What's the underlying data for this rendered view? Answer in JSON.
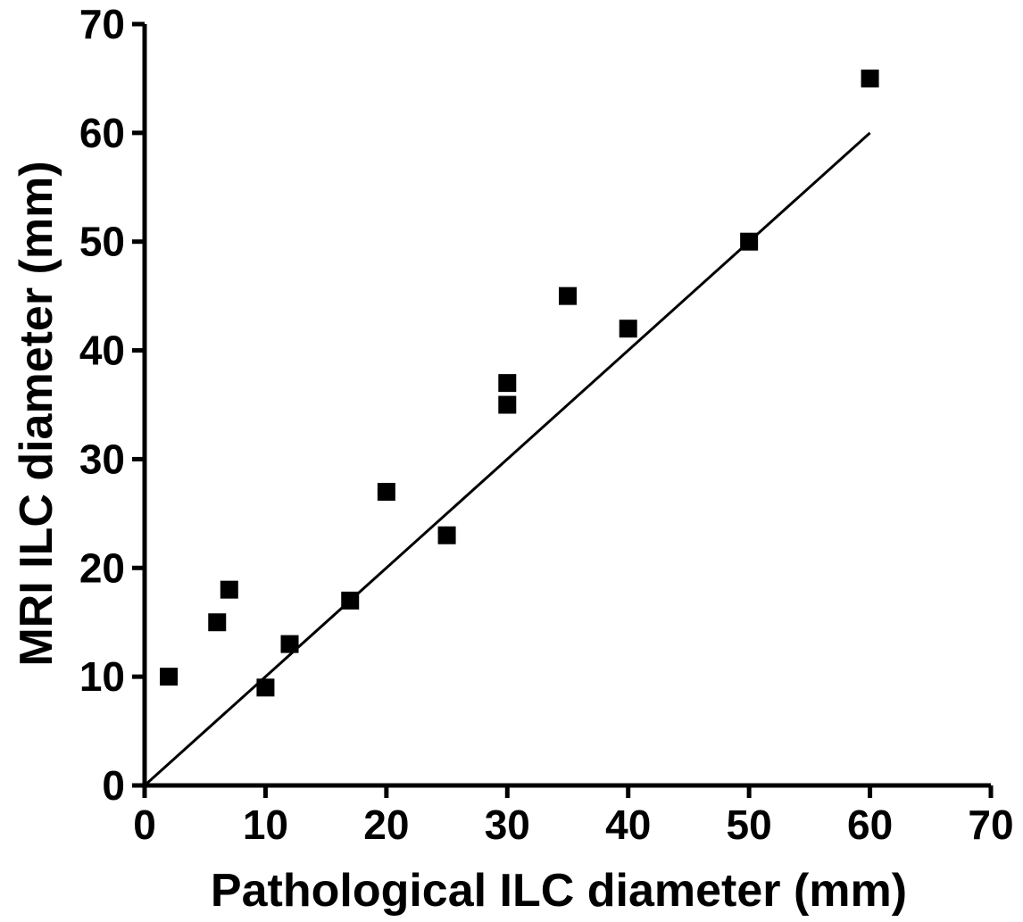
{
  "chart_data": {
    "type": "scatter",
    "xlabel": "Pathological ILC diameter (mm)",
    "ylabel": "MRI ILC diameter (mm)",
    "xlim": [
      0,
      70
    ],
    "ylim": [
      0,
      70
    ],
    "x_ticks": [
      "0",
      "10",
      "20",
      "30",
      "40",
      "50",
      "60",
      "70"
    ],
    "y_ticks": [
      "0",
      "10",
      "20",
      "30",
      "40",
      "50",
      "60",
      "70"
    ],
    "grid": false,
    "points": [
      {
        "x": 2,
        "y": 10
      },
      {
        "x": 6,
        "y": 15
      },
      {
        "x": 7,
        "y": 18
      },
      {
        "x": 10,
        "y": 9
      },
      {
        "x": 12,
        "y": 13
      },
      {
        "x": 17,
        "y": 17
      },
      {
        "x": 20,
        "y": 27
      },
      {
        "x": 25,
        "y": 23
      },
      {
        "x": 30,
        "y": 37
      },
      {
        "x": 30,
        "y": 35
      },
      {
        "x": 35,
        "y": 45
      },
      {
        "x": 40,
        "y": 42
      },
      {
        "x": 50,
        "y": 50
      },
      {
        "x": 60,
        "y": 65
      }
    ],
    "trend_line": {
      "x": [
        0,
        60
      ],
      "y": [
        0,
        60
      ]
    },
    "colors": {
      "points": "#000000",
      "line": "#000000",
      "axes": "#000000"
    }
  }
}
